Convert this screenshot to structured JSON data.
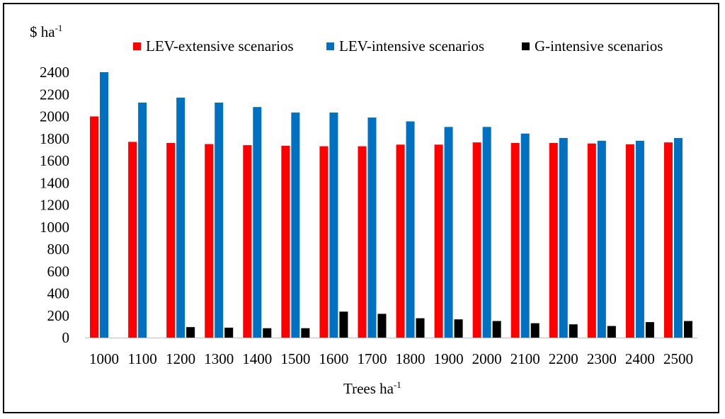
{
  "chart_data": {
    "type": "bar",
    "title": "",
    "ylabel": "$ ha",
    "ylabel_sup": "-1",
    "xlabel": "Trees ha",
    "xlabel_sup": "-1",
    "ylim": [
      0,
      2400
    ],
    "yticks": [
      0,
      200,
      400,
      600,
      800,
      1000,
      1200,
      1400,
      1600,
      1800,
      2000,
      2200,
      2400
    ],
    "grid": false,
    "legend_position": "top",
    "categories": [
      "1000",
      "1100",
      "1200",
      "1300",
      "1400",
      "1500",
      "1600",
      "1700",
      "1800",
      "1900",
      "2000",
      "2100",
      "2200",
      "2300",
      "2400",
      "2500"
    ],
    "series": [
      {
        "name": "LEV-extensive scenarios",
        "color": "#ff0000",
        "values": [
          2000,
          1770,
          1760,
          1750,
          1740,
          1735,
          1730,
          1730,
          1745,
          1745,
          1765,
          1760,
          1760,
          1755,
          1748,
          1765
        ]
      },
      {
        "name": "LEV-intensive scenarios",
        "color": "#0070c0",
        "values": [
          2400,
          2125,
          2170,
          2125,
          2085,
          2035,
          2035,
          1990,
          1955,
          1905,
          1905,
          1845,
          1805,
          1780,
          1780,
          1805
        ]
      },
      {
        "name": "G-intensive scenarios",
        "color": "#000000",
        "values": [
          0,
          0,
          95,
          90,
          85,
          85,
          235,
          215,
          175,
          165,
          150,
          130,
          120,
          105,
          140,
          150
        ]
      }
    ]
  }
}
